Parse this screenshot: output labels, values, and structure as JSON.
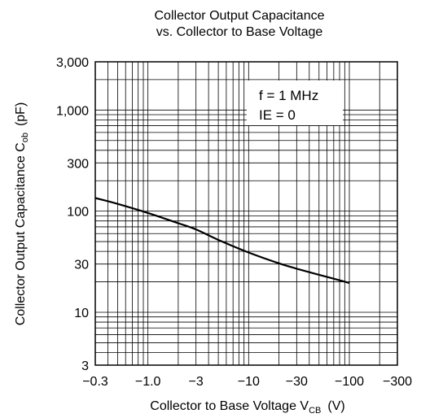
{
  "chart_data": {
    "type": "line",
    "title_line1": "Collector Output Capacitance",
    "title_line2": "vs. Collector to Base Voltage",
    "xlabel": {
      "main": "Collector to Base Voltage  V",
      "sub": "CB",
      "unit": "(V)"
    },
    "ylabel": {
      "main": "Collector Output Capacitance  C",
      "sub": "ob",
      "unit": "(pF)"
    },
    "x_scale": "log",
    "y_scale": "log",
    "xlim": [
      -0.3,
      -300
    ],
    "ylim": [
      3,
      3000
    ],
    "x_ticks": [
      {
        "value": -0.3,
        "label": "−0.3"
      },
      {
        "value": -1,
        "label": "−1.0"
      },
      {
        "value": -3,
        "label": "−3"
      },
      {
        "value": -10,
        "label": "−10"
      },
      {
        "value": -30,
        "label": "−30"
      },
      {
        "value": -100,
        "label": "−100"
      },
      {
        "value": -300,
        "label": "−300"
      }
    ],
    "y_ticks": [
      {
        "value": 3,
        "label": "3"
      },
      {
        "value": 10,
        "label": "10"
      },
      {
        "value": 30,
        "label": "30"
      },
      {
        "value": 100,
        "label": "100"
      },
      {
        "value": 300,
        "label": "300"
      },
      {
        "value": 1000,
        "label": "1,000"
      },
      {
        "value": 3000,
        "label": "3,000"
      }
    ],
    "grid": true,
    "annotations": [
      "f = 1 MHz",
      "IE = 0"
    ],
    "series": [
      {
        "color": "#000000",
        "x": [
          -0.3,
          -0.5,
          -1,
          -2,
          -3,
          -5,
          -10,
          -20,
          -30,
          -50,
          -100
        ],
        "y": [
          135,
          118,
          96,
          76,
          66,
          52,
          39,
          30.5,
          27,
          23.5,
          19.5
        ]
      }
    ]
  }
}
